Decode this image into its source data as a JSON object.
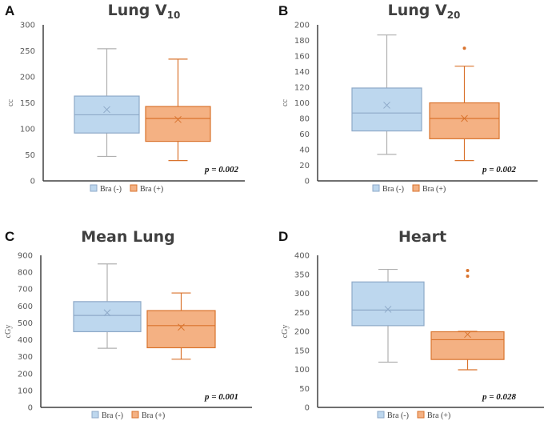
{
  "colors": {
    "bra_minus_fill": "#bdd7ee",
    "bra_minus_stroke": "#8ea9c8",
    "bra_minus_whisker": "#b0b0b0",
    "bra_plus_fill": "#f4b183",
    "bra_plus_stroke": "#d9732d"
  },
  "legend": [
    "Bra (-)",
    "Bra (+)"
  ],
  "chart_data": [
    {
      "type": "box",
      "panel": "A",
      "title": "Lung V",
      "title_sub": "10",
      "ylabel": "cc",
      "ylim": [
        0,
        300
      ],
      "yticks": [
        0,
        50,
        100,
        150,
        200,
        250,
        300
      ],
      "p_value": "p = 0.002",
      "series": [
        {
          "name": "Bra (-)",
          "min": 47,
          "q1": 92,
          "median": 127,
          "q3": 163,
          "max": 254,
          "mean": 137,
          "outliers": []
        },
        {
          "name": "Bra (+)",
          "min": 39,
          "q1": 76,
          "median": 120,
          "q3": 143,
          "max": 234,
          "mean": 118,
          "outliers": []
        }
      ]
    },
    {
      "type": "box",
      "panel": "B",
      "title": "Lung V",
      "title_sub": "20",
      "ylabel": "cc",
      "ylim": [
        0,
        200
      ],
      "yticks": [
        0,
        20,
        40,
        60,
        80,
        100,
        120,
        140,
        160,
        180,
        200
      ],
      "p_value": "p = 0.002",
      "series": [
        {
          "name": "Bra (-)",
          "min": 34,
          "q1": 64,
          "median": 87,
          "q3": 119,
          "max": 187,
          "mean": 97,
          "outliers": []
        },
        {
          "name": "Bra (+)",
          "min": 26,
          "q1": 54,
          "median": 80,
          "q3": 100,
          "max": 147,
          "mean": 80,
          "outliers": [
            170
          ]
        }
      ]
    },
    {
      "type": "box",
      "panel": "C",
      "title": "Mean Lung",
      "title_sub": "",
      "ylabel": "cGy",
      "ylim": [
        0,
        900
      ],
      "yticks": [
        0,
        100,
        200,
        300,
        400,
        500,
        600,
        700,
        800,
        900
      ],
      "p_value": "p = 0.001",
      "series": [
        {
          "name": "Bra (-)",
          "min": 350,
          "q1": 448,
          "median": 544,
          "q3": 626,
          "max": 849,
          "mean": 560,
          "outliers": []
        },
        {
          "name": "Bra (+)",
          "min": 285,
          "q1": 353,
          "median": 484,
          "q3": 573,
          "max": 677,
          "mean": 475,
          "outliers": []
        }
      ]
    },
    {
      "type": "box",
      "panel": "D",
      "title": "Heart",
      "title_sub": "",
      "ylabel": "cGy",
      "ylim": [
        0,
        400
      ],
      "yticks": [
        0,
        50,
        100,
        150,
        200,
        250,
        300,
        350,
        400
      ],
      "p_value": "p = 0.028",
      "series": [
        {
          "name": "Bra (-)",
          "min": 119,
          "q1": 215,
          "median": 256,
          "q3": 330,
          "max": 363,
          "mean": 258,
          "outliers": []
        },
        {
          "name": "Bra (+)",
          "min": 99,
          "q1": 126,
          "median": 178,
          "q3": 199,
          "max": 200,
          "mean": 192,
          "outliers": [
            345,
            360
          ]
        }
      ]
    }
  ]
}
